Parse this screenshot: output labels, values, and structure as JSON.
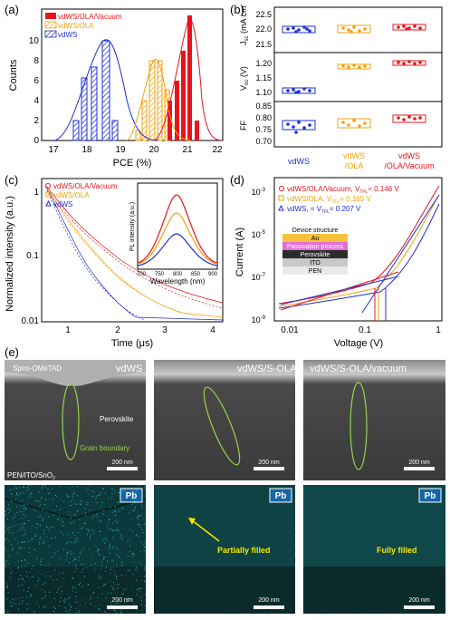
{
  "colors": {
    "red": "#e8141b",
    "orange": "#f2a20c",
    "blue": "#1f2fd0",
    "navy": "#1a1a8c",
    "cyan": "#39d6d6",
    "green": "#9ad24b",
    "fpga_blue": "#1565a8"
  },
  "panel_a": {
    "label": "(a)",
    "xlabel": "PCE (%)",
    "ylabel": "Counts",
    "xticks": [
      "17",
      "18",
      "19",
      "20",
      "21",
      "22"
    ],
    "yticks": [
      "0",
      "2",
      "4",
      "6",
      "8",
      "10"
    ],
    "legend": [
      "vdWS/OLA/Vacuum",
      "vdWS/OLA",
      "vdWS"
    ]
  },
  "panel_b": {
    "label": "(b)",
    "jsc_label": "J",
    "jsc_sub": "sc",
    "jsc_unit": "(mA cm",
    "jsc_ticks": [
      "22.5",
      "22.0",
      "21.5"
    ],
    "voc_label": "V",
    "voc_sub": "oc",
    "voc_unit": "(V)",
    "voc_ticks": [
      "1.20",
      "1.15",
      "1.10"
    ],
    "ff_label": "FF",
    "ff_ticks": [
      "0.85",
      "0.80",
      "0.75",
      "0.70"
    ],
    "groups": [
      "vdWS",
      "vdWS",
      "/OLA",
      "vdWS",
      "/OLA/Vacuum"
    ]
  },
  "panel_c": {
    "label": "(c)",
    "xlabel": "Time (μs)",
    "ylabel": "Normalized intensity (a.u.)",
    "xticks": [
      "1",
      "2",
      "3",
      "4"
    ],
    "yticks": [
      "1",
      "0.1",
      "0.01"
    ],
    "legend": [
      "vdWS/OLA/Vacuum",
      "vdWS/OLA",
      "vdWS"
    ],
    "inset_xlabel": "Wavelength (nm)",
    "inset_ylabel": "PL intensity (a.u.)",
    "inset_xticks": [
      "700",
      "750",
      "800",
      "850",
      "900"
    ]
  },
  "panel_d": {
    "label": "(d)",
    "xlabel": "Voltage (V)",
    "ylabel": "Current (A)",
    "xticks": [
      "0.01",
      "0.1",
      "1"
    ],
    "yticks": [
      "10",
      "10",
      "10",
      "10"
    ],
    "yexp": [
      "-3",
      "-5",
      "-7",
      "-9"
    ],
    "legend": [
      "vdWS/OLA/Vacuum, V",
      "= 0.146 V",
      "vdWS/OLA, V",
      "= 0.165 V",
      "vdWS, = V",
      "= 0.207 V"
    ],
    "tfl": "TFL",
    "device_title": "Device structure",
    "layers": [
      "Au",
      "Passivation process",
      "Perovskite",
      "ITO",
      "PEN"
    ]
  },
  "panel_e": {
    "label": "(e)",
    "titles": [
      "vdWS",
      "vdWS/S-OLA",
      "vdWS/S-OLA/vacuum"
    ],
    "spiro": "Spiro-OMeTAD",
    "perovskite": "Perovskite",
    "grain": "Grain boundary",
    "substrate": "PEN/ITO/SnO",
    "substrate_sub": "2",
    "scale": "200 nm",
    "pb": "Pb",
    "partial": "Partially filled",
    "full": "Fully filled"
  }
}
